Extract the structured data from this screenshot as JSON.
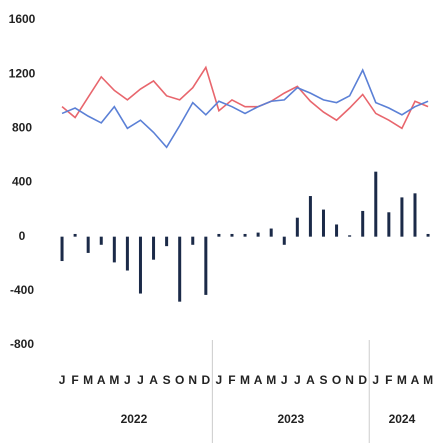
{
  "chart_data": {
    "type": "bar_line",
    "categories": [
      "J",
      "F",
      "M",
      "A",
      "M",
      "J",
      "J",
      "A",
      "S",
      "O",
      "N",
      "D",
      "J",
      "F",
      "M",
      "A",
      "M",
      "J",
      "J",
      "A",
      "S",
      "O",
      "N",
      "D",
      "J",
      "F",
      "M",
      "A",
      "M"
    ],
    "year_labels": [
      "2022",
      "2023",
      "2024"
    ],
    "bar_color": "#1b2a48",
    "values": [
      -180,
      20,
      -120,
      -60,
      -190,
      -250,
      -420,
      -170,
      -70,
      -480,
      -60,
      -430,
      20,
      20,
      20,
      30,
      60,
      -60,
      140,
      300,
      200,
      90,
      10,
      190,
      480,
      180,
      290,
      320,
      20
    ],
    "series": [
      {
        "color": "#e8666d",
        "values": [
          960,
          880,
          1030,
          1180,
          1080,
          1010,
          1090,
          1150,
          1040,
          1010,
          1100,
          1250,
          930,
          1010,
          960,
          960,
          1000,
          1060,
          1110,
          1000,
          920,
          860,
          950,
          1050,
          910,
          860,
          800,
          1000,
          960
        ]
      },
      {
        "color": "#5b80d6",
        "values": [
          910,
          950,
          890,
          840,
          960,
          800,
          860,
          770,
          660,
          820,
          990,
          900,
          1000,
          960,
          910,
          960,
          1000,
          1010,
          1100,
          1060,
          1010,
          990,
          1040,
          1230,
          990,
          950,
          900,
          960,
          1000
        ]
      }
    ],
    "ylim": [
      -800,
      1600
    ],
    "yticks": [
      -800,
      -400,
      0,
      400,
      800,
      1200,
      1600
    ]
  }
}
